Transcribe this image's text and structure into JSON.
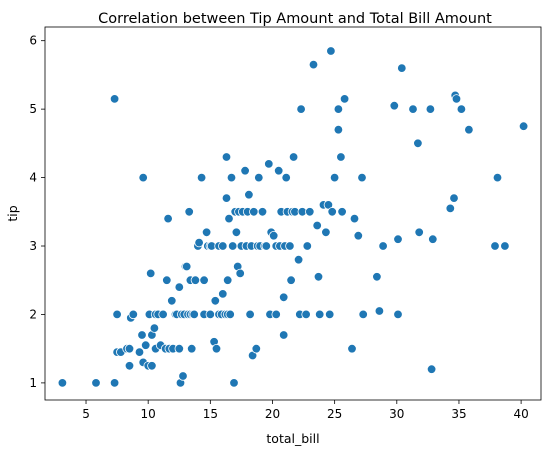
{
  "chart_data": {
    "type": "scatter",
    "title": "Correlation between Tip Amount and Total Bill Amount",
    "xlabel": "total_bill",
    "ylabel": "tip",
    "xlim": [
      1.7,
      41.6
    ],
    "ylim": [
      0.75,
      6.2
    ],
    "xticks": [
      5,
      10,
      15,
      20,
      25,
      30,
      35,
      40
    ],
    "yticks": [
      1,
      2,
      3,
      4,
      5,
      6
    ],
    "grid": false,
    "legend": "none",
    "point_color": "#1f77b4",
    "points": [
      [
        3.1,
        1.0
      ],
      [
        5.8,
        1.0
      ],
      [
        7.3,
        1.0
      ],
      [
        7.3,
        5.15
      ],
      [
        7.5,
        2.0
      ],
      [
        7.5,
        1.45
      ],
      [
        7.8,
        1.45
      ],
      [
        8.3,
        1.5
      ],
      [
        8.5,
        1.25
      ],
      [
        8.6,
        1.95
      ],
      [
        8.8,
        2.0
      ],
      [
        8.5,
        1.5
      ],
      [
        9.3,
        1.45
      ],
      [
        9.5,
        1.7
      ],
      [
        9.6,
        4.0
      ],
      [
        9.6,
        1.3
      ],
      [
        9.8,
        1.55
      ],
      [
        10.0,
        1.25
      ],
      [
        10.1,
        2.0
      ],
      [
        10.2,
        2.6
      ],
      [
        10.3,
        1.7
      ],
      [
        10.3,
        1.25
      ],
      [
        10.5,
        1.8
      ],
      [
        10.6,
        1.5
      ],
      [
        10.6,
        2.0
      ],
      [
        10.8,
        2.0
      ],
      [
        11.0,
        1.55
      ],
      [
        11.2,
        2.0
      ],
      [
        11.4,
        1.5
      ],
      [
        11.5,
        2.5
      ],
      [
        11.6,
        3.4
      ],
      [
        11.7,
        1.5
      ],
      [
        11.9,
        2.2
      ],
      [
        12.0,
        1.5
      ],
      [
        12.2,
        2.0
      ],
      [
        12.3,
        2.0
      ],
      [
        12.5,
        2.4
      ],
      [
        12.5,
        1.5
      ],
      [
        12.6,
        1.0
      ],
      [
        12.7,
        2.0
      ],
      [
        12.8,
        1.1
      ],
      [
        12.9,
        2.0
      ],
      [
        13.0,
        2.7
      ],
      [
        13.1,
        2.7
      ],
      [
        13.2,
        2.0
      ],
      [
        13.3,
        3.5
      ],
      [
        13.4,
        2.5
      ],
      [
        13.4,
        2.0
      ],
      [
        13.5,
        1.5
      ],
      [
        13.6,
        2.0
      ],
      [
        13.7,
        2.0
      ],
      [
        13.8,
        2.5
      ],
      [
        14.0,
        3.0
      ],
      [
        14.1,
        3.05
      ],
      [
        14.3,
        4.0
      ],
      [
        14.5,
        2.5
      ],
      [
        14.5,
        2.0
      ],
      [
        14.7,
        3.2
      ],
      [
        14.8,
        3.0
      ],
      [
        15.0,
        2.0
      ],
      [
        15.0,
        3.0
      ],
      [
        15.1,
        3.0
      ],
      [
        15.3,
        1.6
      ],
      [
        15.4,
        2.2
      ],
      [
        15.5,
        1.5
      ],
      [
        15.7,
        3.0
      ],
      [
        15.7,
        2.0
      ],
      [
        15.9,
        2.0
      ],
      [
        16.0,
        3.0
      ],
      [
        16.0,
        2.3
      ],
      [
        16.2,
        2.0
      ],
      [
        16.3,
        3.7
      ],
      [
        16.3,
        4.3
      ],
      [
        16.4,
        2.0
      ],
      [
        16.4,
        2.5
      ],
      [
        16.5,
        3.4
      ],
      [
        16.6,
        2.0
      ],
      [
        16.7,
        4.0
      ],
      [
        16.8,
        3.0
      ],
      [
        16.9,
        1.0
      ],
      [
        17.0,
        3.5
      ],
      [
        17.1,
        3.2
      ],
      [
        17.2,
        2.7
      ],
      [
        17.3,
        3.5
      ],
      [
        17.4,
        2.6
      ],
      [
        17.5,
        3.0
      ],
      [
        17.6,
        3.5
      ],
      [
        17.8,
        4.1
      ],
      [
        17.9,
        3.0
      ],
      [
        18.0,
        3.5
      ],
      [
        18.1,
        3.75
      ],
      [
        18.2,
        2.0
      ],
      [
        18.3,
        3.0
      ],
      [
        18.4,
        1.4
      ],
      [
        18.5,
        3.5
      ],
      [
        18.7,
        1.5
      ],
      [
        18.8,
        3.0
      ],
      [
        18.9,
        4.0
      ],
      [
        19.0,
        3.0
      ],
      [
        19.2,
        3.5
      ],
      [
        19.4,
        3.0
      ],
      [
        19.5,
        3.0
      ],
      [
        19.7,
        4.2
      ],
      [
        19.8,
        2.0
      ],
      [
        19.9,
        3.2
      ],
      [
        20.1,
        3.15
      ],
      [
        20.3,
        2.0
      ],
      [
        20.3,
        3.0
      ],
      [
        20.5,
        4.1
      ],
      [
        20.6,
        3.0
      ],
      [
        20.7,
        3.5
      ],
      [
        20.9,
        2.25
      ],
      [
        20.9,
        1.7
      ],
      [
        21.0,
        3.0
      ],
      [
        21.1,
        4.0
      ],
      [
        21.2,
        3.5
      ],
      [
        21.4,
        3.0
      ],
      [
        21.5,
        2.5
      ],
      [
        21.6,
        3.5
      ],
      [
        21.7,
        4.3
      ],
      [
        21.8,
        3.5
      ],
      [
        22.1,
        2.8
      ],
      [
        22.2,
        2.0
      ],
      [
        22.3,
        5.0
      ],
      [
        22.4,
        3.5
      ],
      [
        22.7,
        2.0
      ],
      [
        22.8,
        3.0
      ],
      [
        23.0,
        3.5
      ],
      [
        23.3,
        5.65
      ],
      [
        23.6,
        3.3
      ],
      [
        23.7,
        2.55
      ],
      [
        23.8,
        2.0
      ],
      [
        24.1,
        3.6
      ],
      [
        24.3,
        3.2
      ],
      [
        24.5,
        3.6
      ],
      [
        24.6,
        2.0
      ],
      [
        24.7,
        5.85
      ],
      [
        24.8,
        3.5
      ],
      [
        25.0,
        4.0
      ],
      [
        25.3,
        4.7
      ],
      [
        25.3,
        5.0
      ],
      [
        25.5,
        4.3
      ],
      [
        25.6,
        3.5
      ],
      [
        25.8,
        5.15
      ],
      [
        26.4,
        1.5
      ],
      [
        26.6,
        3.4
      ],
      [
        26.9,
        3.15
      ],
      [
        27.2,
        4.0
      ],
      [
        27.3,
        2.0
      ],
      [
        28.4,
        2.55
      ],
      [
        28.6,
        2.05
      ],
      [
        28.9,
        3.0
      ],
      [
        29.8,
        5.05
      ],
      [
        30.1,
        2.0
      ],
      [
        30.1,
        3.1
      ],
      [
        30.4,
        5.6
      ],
      [
        31.3,
        5.0
      ],
      [
        31.7,
        4.5
      ],
      [
        31.8,
        3.2
      ],
      [
        32.7,
        5.0
      ],
      [
        32.8,
        1.2
      ],
      [
        32.9,
        3.1
      ],
      [
        34.3,
        3.55
      ],
      [
        34.6,
        3.7
      ],
      [
        34.7,
        5.2
      ],
      [
        34.8,
        5.15
      ],
      [
        35.2,
        5.0
      ],
      [
        35.8,
        4.7
      ],
      [
        37.9,
        3.0
      ],
      [
        38.1,
        4.0
      ],
      [
        38.7,
        3.0
      ],
      [
        40.2,
        4.75
      ]
    ]
  }
}
